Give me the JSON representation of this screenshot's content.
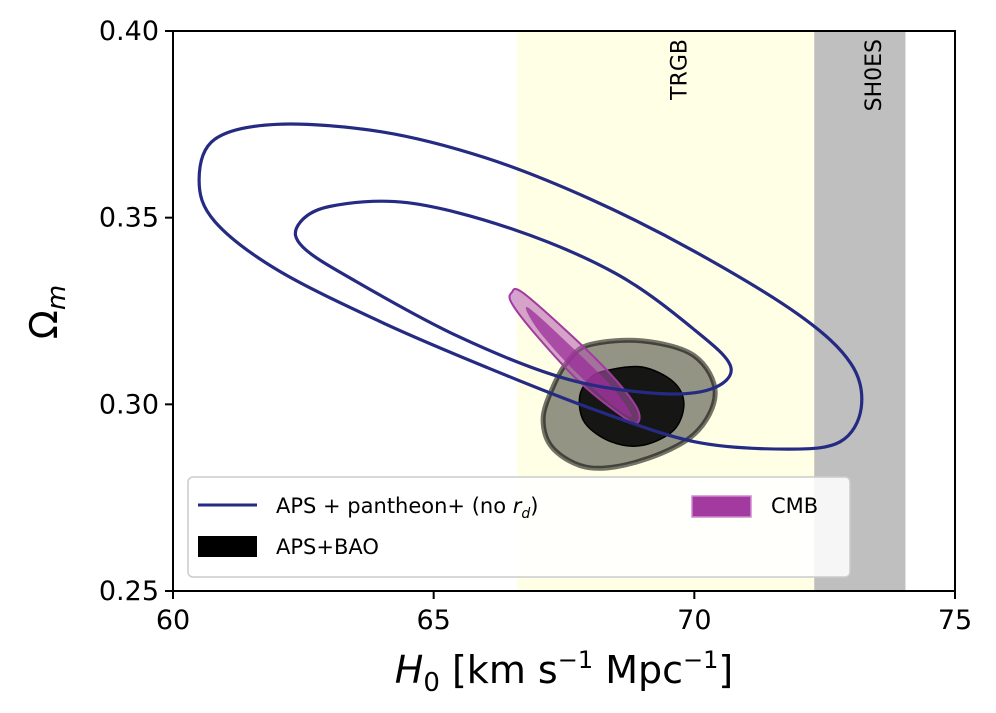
{
  "chart_data": {
    "type": "contour",
    "xlabel": "H",
    "xlabel_sub": "0",
    "xlabel_units": " [km s",
    "xlabel_exp1": "−1",
    "xlabel_mpc": " Mpc",
    "xlabel_exp2": "−1",
    "xlabel_close": "]",
    "ylabel": "Ω",
    "ylabel_sub": "m",
    "xlim": [
      60,
      75
    ],
    "ylim": [
      0.25,
      0.4
    ],
    "xticks": [
      60,
      65,
      70,
      75
    ],
    "xtick_labels": [
      "60",
      "65",
      "70",
      "75"
    ],
    "yticks": [
      0.25,
      0.3,
      0.35,
      0.4
    ],
    "ytick_labels": [
      "0.25",
      "0.30",
      "0.35",
      "0.40"
    ],
    "bands": [
      {
        "name": "TRGB",
        "label": "TRGB",
        "xmin": 66.6,
        "xmax": 72.3,
        "color": "#ffffe0",
        "opacity": 0.85
      },
      {
        "name": "SH0ES",
        "label": "SH0ES",
        "xmin": 72.3,
        "xmax": 74.05,
        "color": "#b4b4b4",
        "opacity": 0.85
      }
    ],
    "contours": {
      "aps_pantheon_outer": [
        [
          60.5,
          0.36
        ],
        [
          60.8,
          0.371
        ],
        [
          62,
          0.375
        ],
        [
          64,
          0.373
        ],
        [
          66,
          0.366
        ],
        [
          68,
          0.355
        ],
        [
          70,
          0.341
        ],
        [
          72,
          0.324
        ],
        [
          73,
          0.311
        ],
        [
          73.2,
          0.299
        ],
        [
          72.8,
          0.29
        ],
        [
          71.8,
          0.288
        ],
        [
          70,
          0.29
        ],
        [
          68,
          0.299
        ],
        [
          66,
          0.31
        ],
        [
          64,
          0.322
        ],
        [
          62,
          0.336
        ],
        [
          60.8,
          0.349
        ],
        [
          60.5,
          0.36
        ]
      ],
      "aps_pantheon_inner": [
        [
          62.4,
          0.348
        ],
        [
          63,
          0.353
        ],
        [
          64.5,
          0.354
        ],
        [
          66.5,
          0.347
        ],
        [
          68.5,
          0.335
        ],
        [
          70,
          0.32
        ],
        [
          70.7,
          0.31
        ],
        [
          70.3,
          0.304
        ],
        [
          69.2,
          0.303
        ],
        [
          67.5,
          0.307
        ],
        [
          65.5,
          0.318
        ],
        [
          63.5,
          0.333
        ],
        [
          62.5,
          0.342
        ],
        [
          62.4,
          0.348
        ]
      ],
      "aps_bao_outer": [
        [
          68.0,
          0.316
        ],
        [
          69.0,
          0.317
        ],
        [
          70.0,
          0.313
        ],
        [
          70.4,
          0.303
        ],
        [
          70.0,
          0.292
        ],
        [
          69.0,
          0.285
        ],
        [
          68.0,
          0.283
        ],
        [
          67.3,
          0.288
        ],
        [
          67.1,
          0.296
        ],
        [
          67.3,
          0.305
        ],
        [
          67.6,
          0.312
        ],
        [
          68.0,
          0.316
        ]
      ],
      "aps_bao_inner": [
        [
          68.3,
          0.309
        ],
        [
          69.0,
          0.31
        ],
        [
          69.6,
          0.306
        ],
        [
          69.8,
          0.3
        ],
        [
          69.6,
          0.293
        ],
        [
          69.0,
          0.289
        ],
        [
          68.4,
          0.29
        ],
        [
          67.9,
          0.295
        ],
        [
          67.8,
          0.302
        ],
        [
          68.0,
          0.307
        ],
        [
          68.3,
          0.309
        ]
      ],
      "cmb": [
        [
          66.5,
          0.33
        ],
        [
          66.7,
          0.33
        ],
        [
          67.6,
          0.319
        ],
        [
          68.4,
          0.308
        ],
        [
          68.9,
          0.299
        ],
        [
          68.9,
          0.295
        ],
        [
          68.6,
          0.297
        ],
        [
          67.8,
          0.306
        ],
        [
          67.0,
          0.318
        ],
        [
          66.5,
          0.327
        ],
        [
          66.5,
          0.33
        ]
      ],
      "cmb_inner": [
        [
          66.8,
          0.326
        ],
        [
          67.6,
          0.316
        ],
        [
          68.4,
          0.305
        ],
        [
          68.8,
          0.297
        ],
        [
          68.5,
          0.299
        ],
        [
          67.7,
          0.309
        ],
        [
          67.0,
          0.32
        ],
        [
          66.8,
          0.326
        ]
      ]
    },
    "legend": [
      {
        "label_main": "APS + pantheon+ (no ",
        "label_var": "r",
        "label_sub": "d",
        "label_end": ")",
        "kind": "line",
        "color": "#252a82"
      },
      {
        "label": "APS+BAO",
        "kind": "fill",
        "color": "#000000"
      },
      {
        "label": "CMB",
        "kind": "fill",
        "color": "#a23aa0"
      }
    ],
    "legend_position": "lower-left"
  }
}
